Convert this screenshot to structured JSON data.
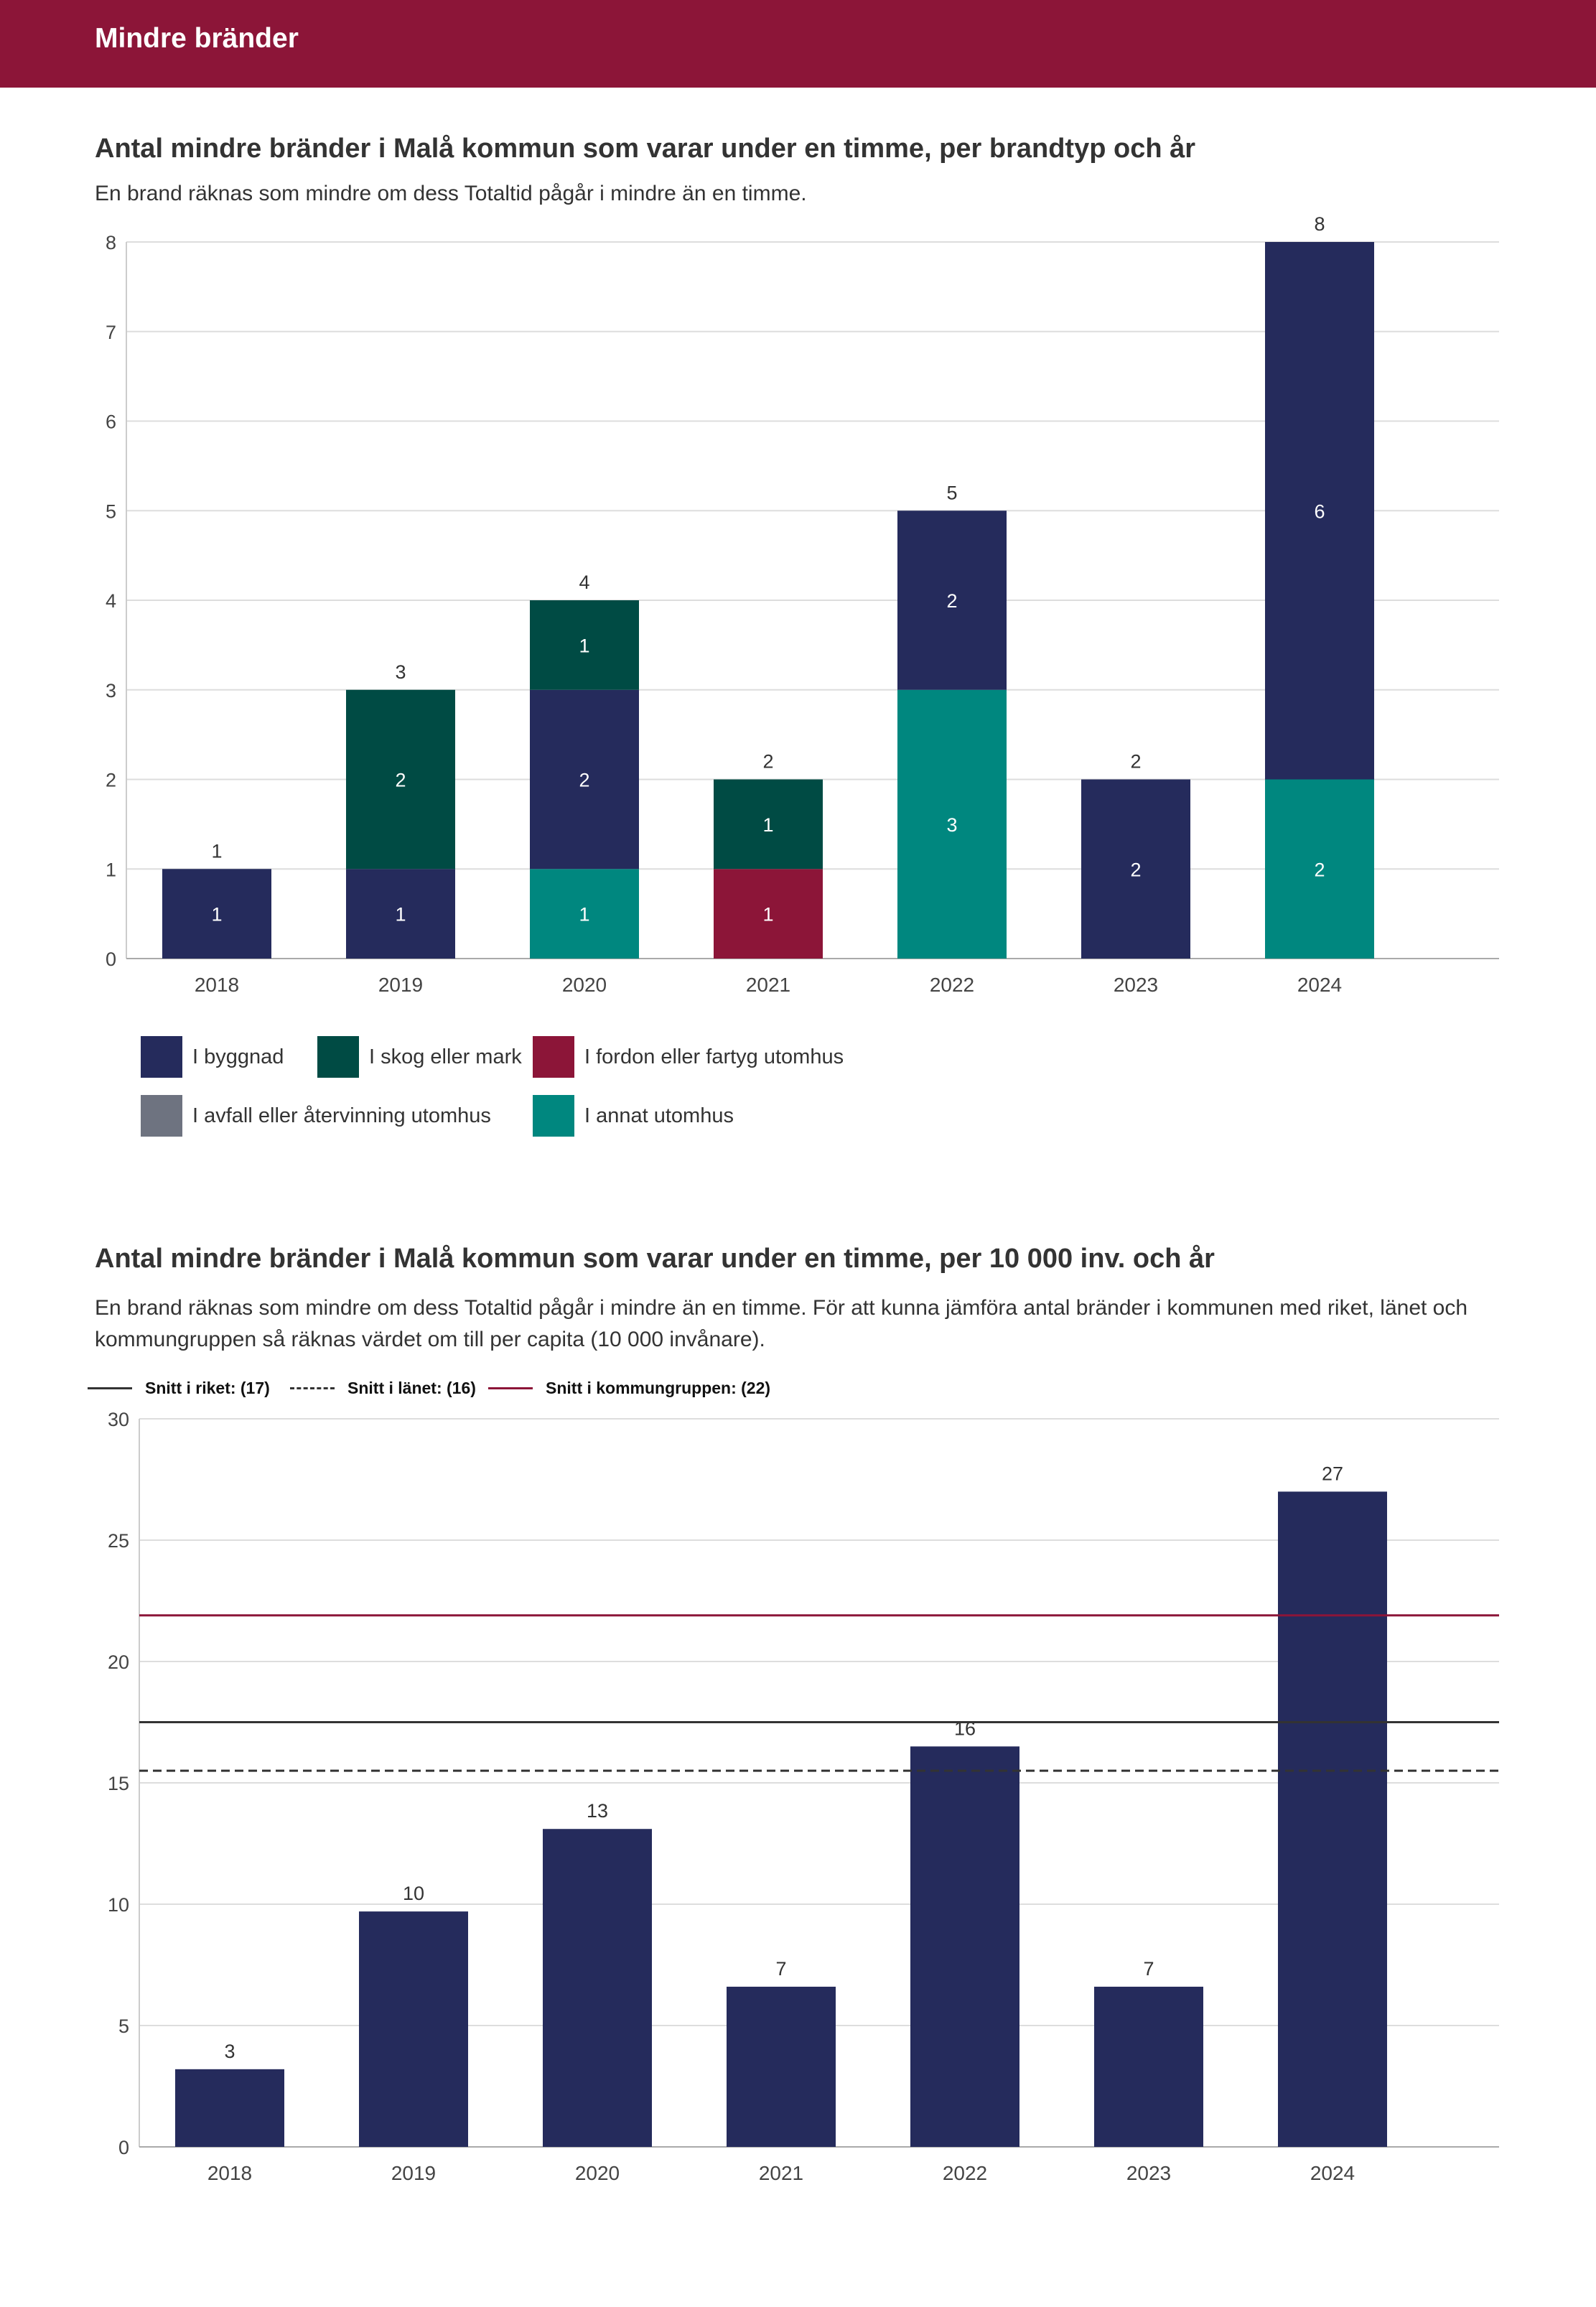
{
  "header": {
    "title": "Mindre bränder"
  },
  "chart1": {
    "title": "Antal mindre bränder i Malå kommun som varar under en timme, per brandtyp och år",
    "subtitle": "En brand räknas som mindre om dess Totaltid pågår i mindre än en timme.",
    "legend": [
      {
        "label": "I byggnad",
        "color": "#252b5c"
      },
      {
        "label": "I skog eller mark",
        "color": "#004b44"
      },
      {
        "label": "I fordon eller fartyg utomhus",
        "color": "#8c1538"
      },
      {
        "label": "I avfall eller återvinning utomhus",
        "color": "#6e7380"
      },
      {
        "label": "I annat utomhus",
        "color": "#00877f"
      }
    ]
  },
  "chart2": {
    "title": "Antal mindre bränder i Malå kommun som varar under en timme, per 10 000 inv. och år",
    "subtitle": "En brand räknas som mindre om dess Totaltid pågår i mindre än en timme. För att kunna jämföra antal bränder i kommunen med riket, länet och kommungruppen så räknas värdet om till per capita (10 000 invånare).",
    "reference_legend": [
      {
        "label": "Snitt i riket: (17)",
        "style": "solid",
        "color": "#333333"
      },
      {
        "label": "Snitt i länet: (16)",
        "style": "dashed",
        "color": "#333333"
      },
      {
        "label": "Snitt i kommungruppen: (22)",
        "style": "solid",
        "color": "#8c1538"
      }
    ]
  },
  "chart_data": [
    {
      "type": "bar",
      "stacked": true,
      "title": "Antal mindre bränder i Malå kommun som varar under en timme, per brandtyp och år",
      "categories": [
        "2018",
        "2019",
        "2020",
        "2021",
        "2022",
        "2023",
        "2024"
      ],
      "series": [
        {
          "name": "I annat utomhus",
          "color": "#00877f",
          "values": [
            0,
            0,
            1,
            0,
            3,
            0,
            2
          ]
        },
        {
          "name": "I fordon eller fartyg utomhus",
          "color": "#8c1538",
          "values": [
            0,
            0,
            0,
            1,
            0,
            0,
            0
          ]
        },
        {
          "name": "I avfall eller återvinning utomhus",
          "color": "#6e7380",
          "values": [
            0,
            0,
            0,
            0,
            0,
            0,
            0
          ]
        },
        {
          "name": "I byggnad",
          "color": "#252b5c",
          "values": [
            1,
            1,
            2,
            0,
            2,
            2,
            6
          ]
        },
        {
          "name": "I skog eller mark",
          "color": "#004b44",
          "values": [
            0,
            2,
            1,
            1,
            0,
            0,
            0
          ]
        }
      ],
      "totals": [
        1,
        3,
        4,
        2,
        5,
        2,
        8
      ],
      "yticks": [
        0,
        1,
        2,
        3,
        4,
        5,
        6,
        7,
        8
      ],
      "ylim": [
        0,
        8
      ],
      "xlabel": "",
      "ylabel": ""
    },
    {
      "type": "bar",
      "title": "Antal mindre bränder i Malå kommun som varar under en timme, per 10 000 inv. och år",
      "categories": [
        "2018",
        "2019",
        "2020",
        "2021",
        "2022",
        "2023",
        "2024"
      ],
      "values": [
        3.2,
        9.7,
        13.1,
        6.6,
        16.5,
        6.6,
        27
      ],
      "value_labels": [
        "3",
        "10",
        "13",
        "7",
        "16",
        "7",
        "27"
      ],
      "bar_color": "#252b5c",
      "reference_lines": [
        {
          "name": "Snitt i riket",
          "value": 17.5,
          "style": "solid",
          "color": "#333333"
        },
        {
          "name": "Snitt i länet",
          "value": 15.5,
          "style": "dashed",
          "color": "#333333"
        },
        {
          "name": "Snitt i kommungruppen",
          "value": 21.9,
          "style": "solid",
          "color": "#8c1538"
        }
      ],
      "yticks": [
        0,
        5,
        10,
        15,
        20,
        25,
        30
      ],
      "ylim": [
        0,
        30
      ],
      "xlabel": "",
      "ylabel": ""
    }
  ]
}
